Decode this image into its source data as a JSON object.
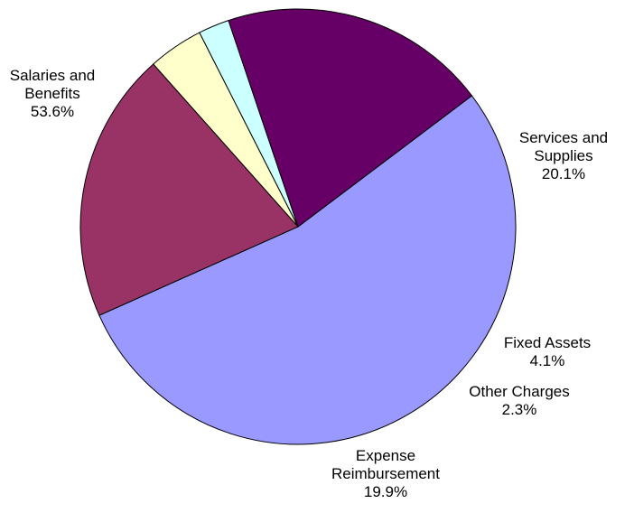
{
  "chart_data": {
    "type": "pie",
    "title": "",
    "slices": [
      {
        "name": "Salaries and Benefits",
        "label_lines": [
          "Salaries and",
          "Benefits"
        ],
        "value": 53.6,
        "percent_label": "53.6%",
        "color": "#9999FF"
      },
      {
        "name": "Services and Supplies",
        "label_lines": [
          "Services and",
          "Supplies"
        ],
        "value": 20.1,
        "percent_label": "20.1%",
        "color": "#993366"
      },
      {
        "name": "Fixed Assets",
        "label_lines": [
          "Fixed Assets"
        ],
        "value": 4.1,
        "percent_label": "4.1%",
        "color": "#FFFFCC"
      },
      {
        "name": "Other Charges",
        "label_lines": [
          "Other Charges"
        ],
        "value": 2.3,
        "percent_label": "2.3%",
        "color": "#CCFFFF"
      },
      {
        "name": "Expense Reimbursement",
        "label_lines": [
          "Expense",
          "Reimbursement"
        ],
        "value": 19.9,
        "percent_label": "19.9%",
        "color": "#660066"
      }
    ],
    "legend": "none"
  }
}
